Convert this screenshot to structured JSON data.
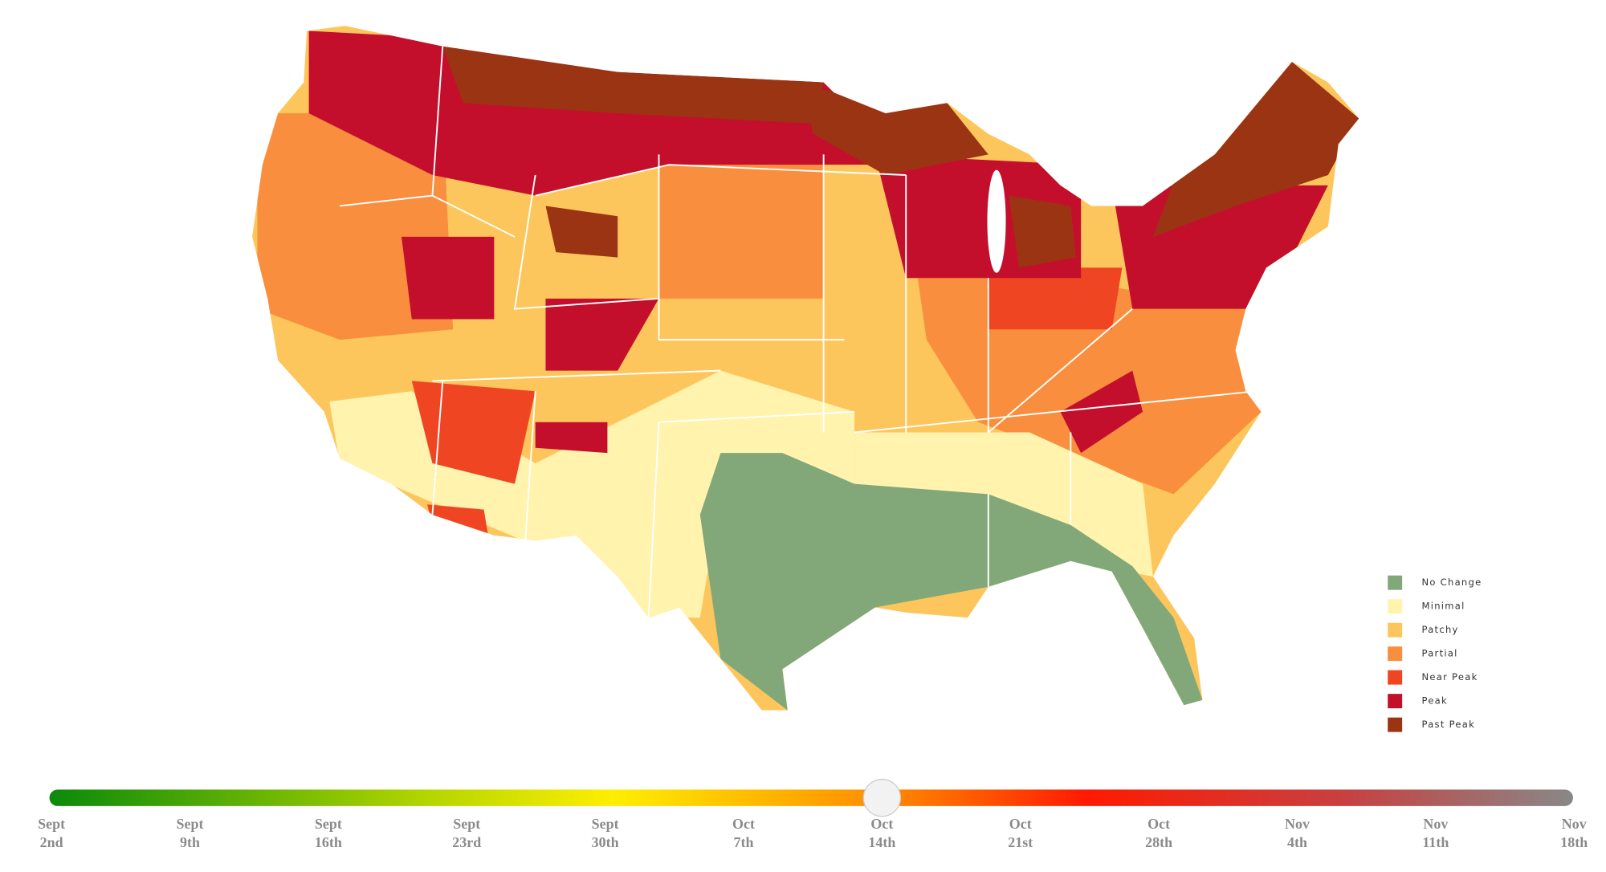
{
  "legend": {
    "items": [
      {
        "label": "No Change",
        "color": "#82a87a"
      },
      {
        "label": "Minimal",
        "color": "#fff3ad"
      },
      {
        "label": "Patchy",
        "color": "#fdc65d"
      },
      {
        "label": "Partial",
        "color": "#f98e3e"
      },
      {
        "label": "Near Peak",
        "color": "#ef4523"
      },
      {
        "label": "Peak",
        "color": "#c40f2c"
      },
      {
        "label": "Past Peak",
        "color": "#9b3413"
      }
    ]
  },
  "timeline": {
    "selected": 6,
    "ticks": [
      {
        "month": "Sept",
        "day": "2nd"
      },
      {
        "month": "Sept",
        "day": "9th"
      },
      {
        "month": "Sept",
        "day": "16th"
      },
      {
        "month": "Sept",
        "day": "23rd"
      },
      {
        "month": "Sept",
        "day": "30th"
      },
      {
        "month": "Oct",
        "day": "7th"
      },
      {
        "month": "Oct",
        "day": "14th"
      },
      {
        "month": "Oct",
        "day": "21st"
      },
      {
        "month": "Oct",
        "day": "28th"
      },
      {
        "month": "Nov",
        "day": "4th"
      },
      {
        "month": "Nov",
        "day": "11th"
      },
      {
        "month": "Nov",
        "day": "18th"
      }
    ]
  }
}
